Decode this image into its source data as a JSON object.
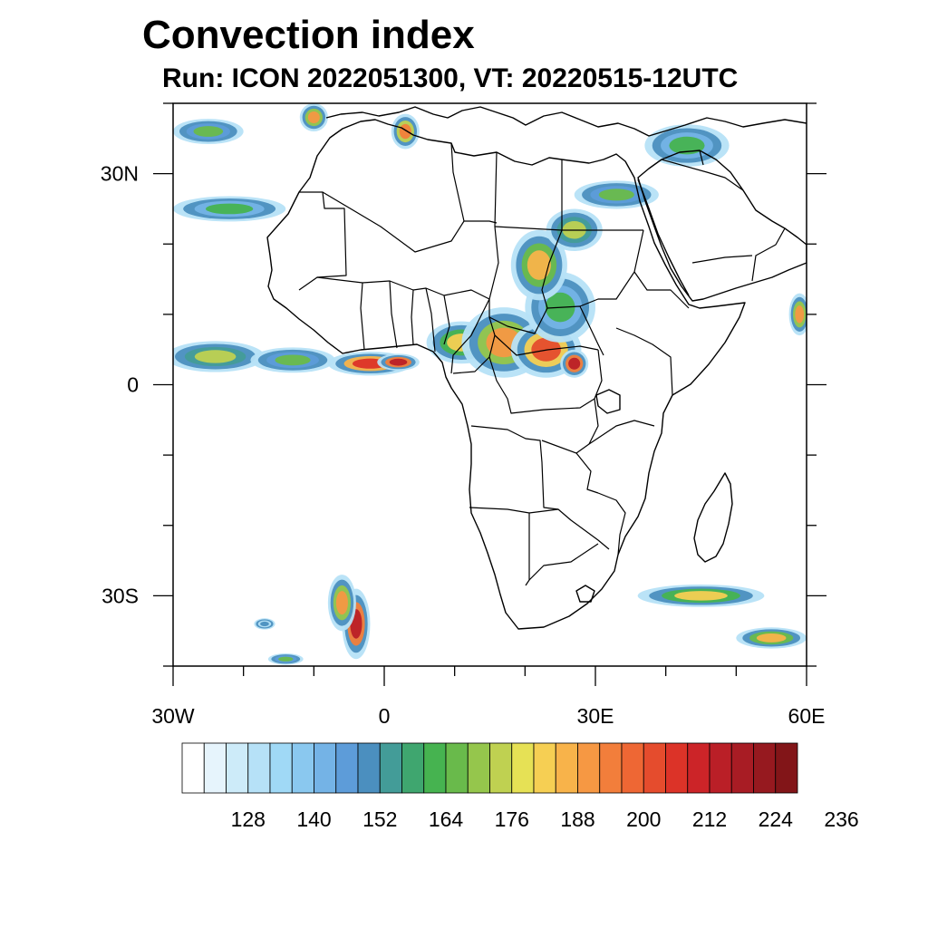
{
  "title": "Convection index",
  "subtitle": "Run: ICON 2022051300,  VT: 20220515-12UTC",
  "map": {
    "lon_range": [
      -30,
      60
    ],
    "lat_range": [
      -40,
      40
    ],
    "lon_ticks": [
      {
        "value": -30,
        "label": "30W"
      },
      {
        "value": 0,
        "label": "0"
      },
      {
        "value": 30,
        "label": "30E"
      },
      {
        "value": 60,
        "label": "60E"
      }
    ],
    "lat_ticks": [
      {
        "value": 30,
        "label": "30N"
      },
      {
        "value": 0,
        "label": "0"
      },
      {
        "value": -30,
        "label": "30S"
      }
    ],
    "minor_lon_step": 10,
    "minor_lat_step": 10
  },
  "colorbar": {
    "colors": [
      "#ffffff",
      "#e6f4fc",
      "#cdebf9",
      "#b6e1f7",
      "#a0d9f6",
      "#8ac8ef",
      "#74b3e6",
      "#5d9cd9",
      "#4b8fbf",
      "#439c98",
      "#3fa66f",
      "#46b350",
      "#69ba4b",
      "#95c64c",
      "#bfd151",
      "#e6e155",
      "#f6cf53",
      "#f8b34a",
      "#f69843",
      "#f27e3b",
      "#ee6734",
      "#e54c2d",
      "#dc3328",
      "#cc2428",
      "#ba1f27",
      "#a81c24",
      "#96191f",
      "#821518"
    ],
    "labels": [
      "128",
      "140",
      "152",
      "164",
      "176",
      "188",
      "200",
      "212",
      "224",
      "236"
    ]
  },
  "convection_cells": [
    {
      "lon": -24,
      "lat": 4,
      "rx": 7,
      "ry": 2.2,
      "value": 175
    },
    {
      "lon": -13,
      "lat": 3.5,
      "rx": 6,
      "ry": 1.8,
      "value": 165
    },
    {
      "lon": -2,
      "lat": 3,
      "rx": 6,
      "ry": 1.7,
      "value": 205
    },
    {
      "lon": 2,
      "lat": 3.2,
      "rx": 3,
      "ry": 1.2,
      "value": 215
    },
    {
      "lon": 11,
      "lat": 6,
      "rx": 5,
      "ry": 3,
      "value": 180
    },
    {
      "lon": 17,
      "lat": 6,
      "rx": 6,
      "ry": 5,
      "value": 190
    },
    {
      "lon": 23,
      "lat": 5,
      "rx": 5,
      "ry": 4,
      "value": 200
    },
    {
      "lon": 27,
      "lat": 3,
      "rx": 2,
      "ry": 2,
      "value": 215
    },
    {
      "lon": 25,
      "lat": 11,
      "rx": 5,
      "ry": 5,
      "value": 160
    },
    {
      "lon": 22,
      "lat": 17,
      "rx": 4,
      "ry": 5,
      "value": 185
    },
    {
      "lon": 27,
      "lat": 22,
      "rx": 4,
      "ry": 3,
      "value": 175
    },
    {
      "lon": 33,
      "lat": 27,
      "rx": 6,
      "ry": 2,
      "value": 165
    },
    {
      "lon": 43,
      "lat": 34,
      "rx": 6,
      "ry": 3,
      "value": 160
    },
    {
      "lon": -22,
      "lat": 25,
      "rx": 8,
      "ry": 1.8,
      "value": 160
    },
    {
      "lon": -25,
      "lat": 36,
      "rx": 5,
      "ry": 1.8,
      "value": 165
    },
    {
      "lon": 3,
      "lat": 36,
      "rx": 2,
      "ry": 2.5,
      "value": 195
    },
    {
      "lon": -10,
      "lat": 38,
      "rx": 2,
      "ry": 2,
      "value": 190
    },
    {
      "lon": 59,
      "lat": 10,
      "rx": 1.5,
      "ry": 3,
      "value": 190
    },
    {
      "lon": 45,
      "lat": -30,
      "rx": 9,
      "ry": 1.6,
      "value": 180
    },
    {
      "lon": 55,
      "lat": -36,
      "rx": 5,
      "ry": 1.5,
      "value": 185
    },
    {
      "lon": -4,
      "lat": -34,
      "rx": 2,
      "ry": 5,
      "value": 215
    },
    {
      "lon": -6,
      "lat": -31,
      "rx": 2,
      "ry": 4,
      "value": 190
    },
    {
      "lon": -17,
      "lat": -34,
      "rx": 1.5,
      "ry": 0.8,
      "value": 150
    },
    {
      "lon": -14,
      "lat": -39,
      "rx": 2.5,
      "ry": 0.8,
      "value": 165
    }
  ]
}
